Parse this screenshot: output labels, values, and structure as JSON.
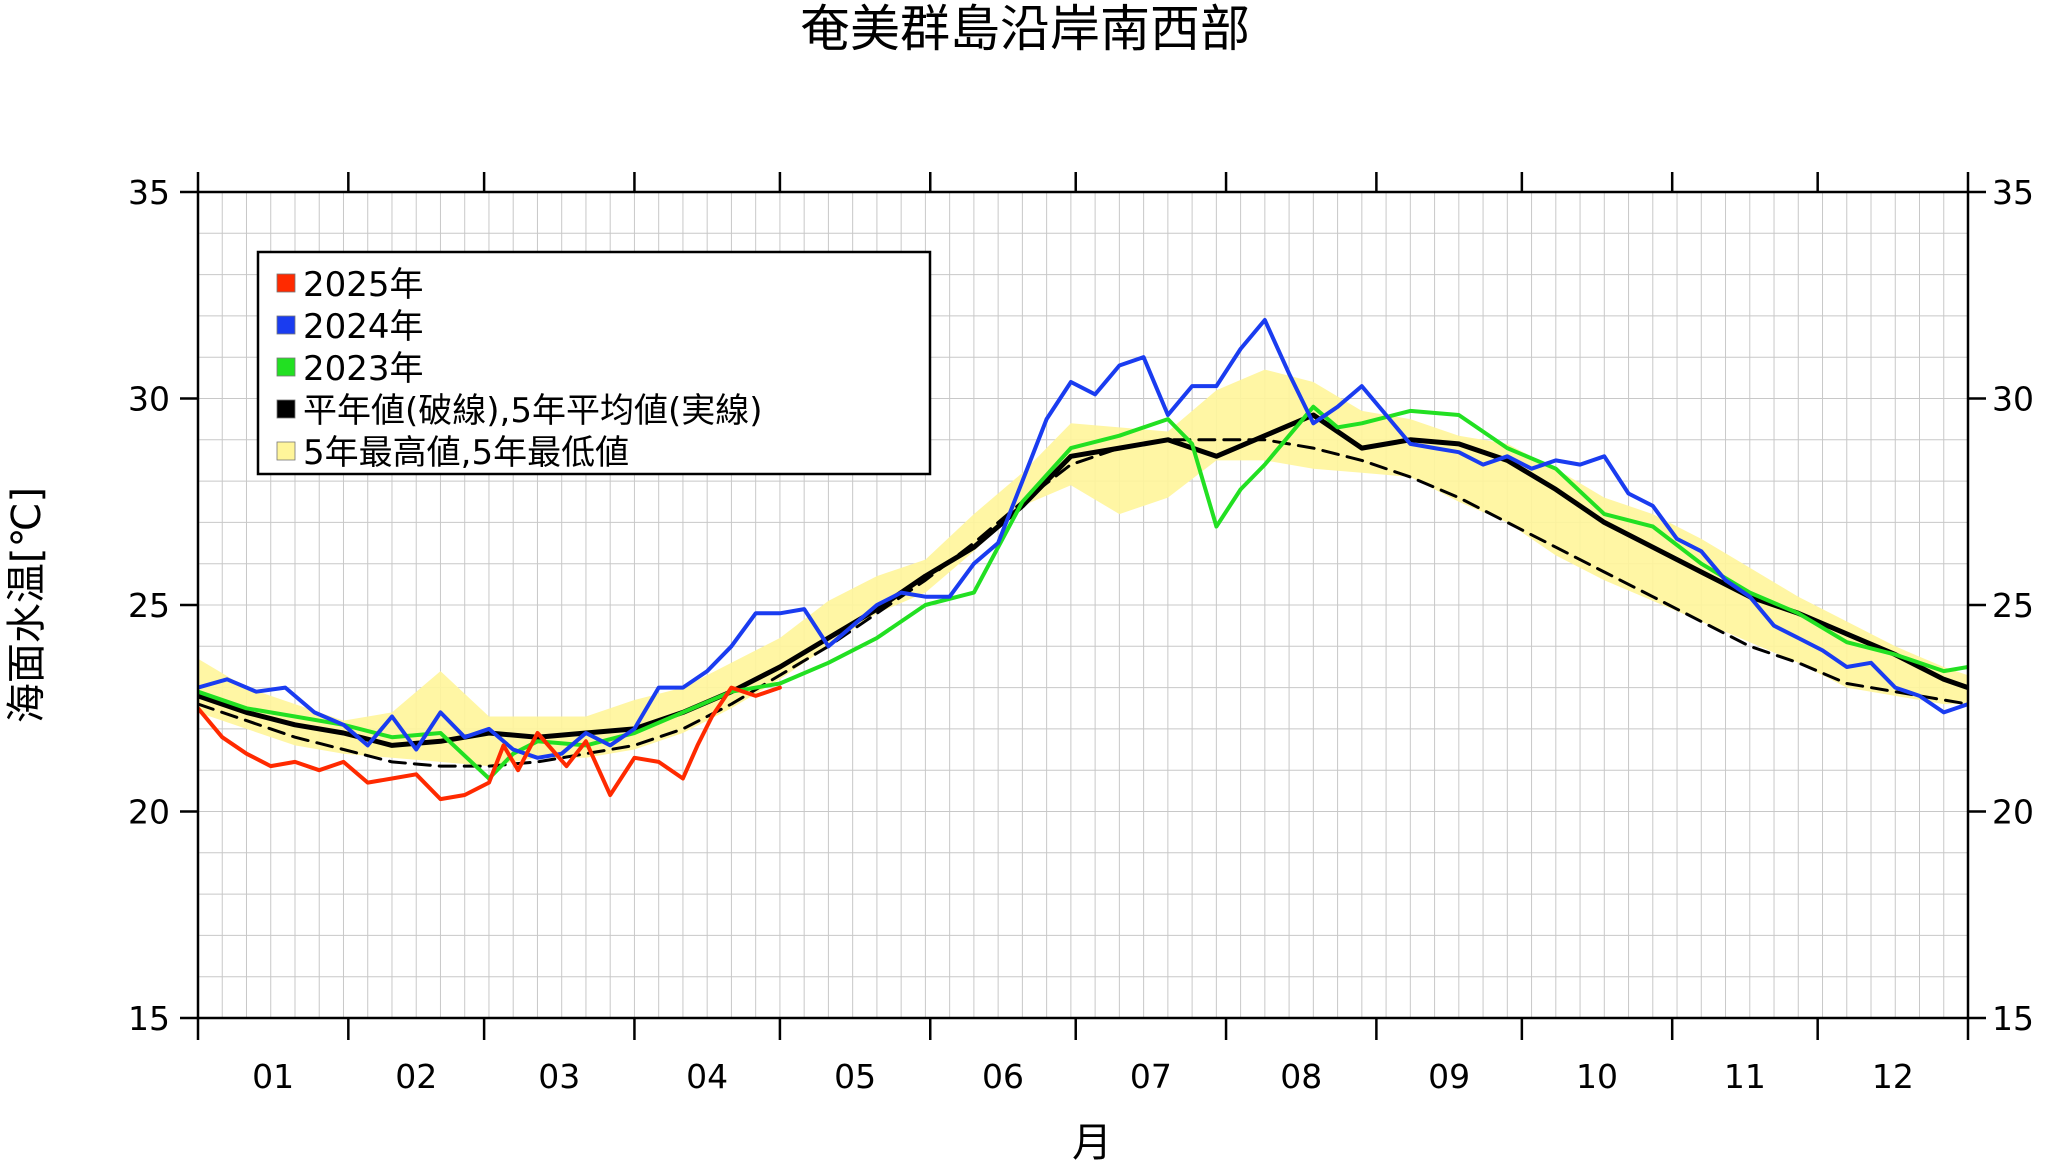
{
  "chart_data": {
    "type": "line",
    "title": "奄美群島沿岸南西部",
    "xlabel": "月",
    "ylabel": "海面水温[℃]",
    "x_unit": "day_of_year",
    "xlim": [
      0,
      365
    ],
    "ylim": [
      15,
      35
    ],
    "y_ticks": [
      15,
      20,
      25,
      30,
      35
    ],
    "month_labels": [
      "01",
      "02",
      "03",
      "04",
      "05",
      "06",
      "07",
      "08",
      "09",
      "10",
      "11",
      "12"
    ],
    "month_starts": [
      0,
      31,
      59,
      90,
      120,
      151,
      181,
      212,
      243,
      273,
      304,
      334,
      365
    ],
    "grid": true,
    "legend_position": "top-left",
    "legend": [
      {
        "label": "2025年",
        "color": "#ff2a00",
        "swatch": "#ff2a00"
      },
      {
        "label": "2024年",
        "color": "#1a3cf0",
        "swatch": "#1a3cf0"
      },
      {
        "label": "2023年",
        "color": "#22e022",
        "swatch": "#22e022"
      },
      {
        "label": "平年値(破線),5年平均値(実線)",
        "color": "#000000",
        "swatch": "#000000"
      },
      {
        "label": "5年最高値,5年最低値",
        "color": "#fff59a",
        "swatch": "#fff59a"
      }
    ],
    "band": {
      "name": "5年最高値,5年最低値",
      "color": "#fff59a",
      "x": [
        0,
        10,
        20,
        30,
        40,
        50,
        60,
        70,
        80,
        90,
        100,
        110,
        120,
        130,
        140,
        150,
        160,
        170,
        180,
        190,
        200,
        210,
        220,
        230,
        240,
        250,
        260,
        270,
        280,
        290,
        300,
        310,
        320,
        330,
        340,
        350,
        360,
        365
      ],
      "upper": [
        23.7,
        23.0,
        22.6,
        22.2,
        22.4,
        23.4,
        22.3,
        22.3,
        22.3,
        22.7,
        23.0,
        23.6,
        24.2,
        25.1,
        25.7,
        26.1,
        27.2,
        28.2,
        29.4,
        29.3,
        29.2,
        30.2,
        30.7,
        30.4,
        29.7,
        29.5,
        29.1,
        28.9,
        28.3,
        27.6,
        27.2,
        26.6,
        25.9,
        25.2,
        24.6,
        24.0,
        23.5,
        23.3
      ],
      "lower": [
        22.4,
        22.0,
        21.6,
        21.4,
        21.3,
        21.2,
        21.1,
        21.3,
        21.3,
        21.5,
        21.9,
        22.5,
        23.2,
        24.0,
        24.8,
        25.3,
        26.3,
        27.4,
        27.9,
        27.2,
        27.6,
        28.5,
        28.5,
        28.3,
        28.2,
        28.1,
        27.5,
        27.0,
        26.2,
        25.6,
        25.1,
        24.6,
        24.1,
        23.6,
        23.0,
        22.8,
        22.6,
        22.6
      ]
    },
    "series": [
      {
        "name": "平年値",
        "color": "#000000",
        "style": "dashed",
        "x": [
          0,
          10,
          20,
          30,
          40,
          50,
          60,
          70,
          80,
          90,
          100,
          110,
          120,
          130,
          140,
          150,
          160,
          170,
          180,
          190,
          200,
          210,
          220,
          230,
          240,
          250,
          260,
          270,
          280,
          290,
          300,
          310,
          320,
          330,
          340,
          350,
          360,
          365
        ],
        "y": [
          22.6,
          22.2,
          21.8,
          21.5,
          21.2,
          21.1,
          21.1,
          21.2,
          21.4,
          21.6,
          22.0,
          22.6,
          23.3,
          24.0,
          24.8,
          25.6,
          26.5,
          27.5,
          28.4,
          28.8,
          29.0,
          29.0,
          29.0,
          28.8,
          28.5,
          28.1,
          27.6,
          27.0,
          26.4,
          25.8,
          25.2,
          24.6,
          24.0,
          23.6,
          23.1,
          22.9,
          22.7,
          22.6
        ]
      },
      {
        "name": "5年平均値",
        "color": "#000000",
        "style": "solid",
        "x": [
          0,
          10,
          20,
          30,
          40,
          50,
          60,
          70,
          80,
          90,
          100,
          110,
          120,
          130,
          140,
          150,
          160,
          170,
          180,
          190,
          200,
          210,
          220,
          230,
          240,
          250,
          260,
          270,
          280,
          290,
          300,
          310,
          320,
          330,
          340,
          350,
          360,
          365
        ],
        "y": [
          22.8,
          22.4,
          22.1,
          21.9,
          21.6,
          21.7,
          21.9,
          21.8,
          21.9,
          22.0,
          22.4,
          22.9,
          23.5,
          24.2,
          24.9,
          25.7,
          26.4,
          27.4,
          28.6,
          28.8,
          29.0,
          28.6,
          29.1,
          29.6,
          28.8,
          29.0,
          28.9,
          28.5,
          27.8,
          27.0,
          26.4,
          25.8,
          25.2,
          24.8,
          24.3,
          23.8,
          23.2,
          23.0
        ]
      },
      {
        "name": "2023年",
        "color": "#22e022",
        "style": "solid",
        "x": [
          0,
          10,
          20,
          30,
          40,
          50,
          60,
          65,
          70,
          80,
          90,
          100,
          110,
          120,
          130,
          140,
          150,
          160,
          170,
          180,
          190,
          200,
          205,
          210,
          215,
          220,
          230,
          235,
          240,
          250,
          260,
          270,
          280,
          290,
          300,
          310,
          320,
          330,
          340,
          350,
          360,
          365
        ],
        "y": [
          22.9,
          22.5,
          22.3,
          22.1,
          21.8,
          21.9,
          20.8,
          21.4,
          21.7,
          21.6,
          21.9,
          22.4,
          22.9,
          23.1,
          23.6,
          24.2,
          25.0,
          25.3,
          27.5,
          28.8,
          29.1,
          29.5,
          28.9,
          26.9,
          27.8,
          28.4,
          29.8,
          29.3,
          29.4,
          29.7,
          29.6,
          28.8,
          28.3,
          27.2,
          26.9,
          26.0,
          25.3,
          24.8,
          24.1,
          23.8,
          23.4,
          23.5
        ]
      },
      {
        "name": "2024年",
        "color": "#1a3cf0",
        "style": "solid",
        "x": [
          0,
          6,
          12,
          18,
          24,
          30,
          35,
          40,
          45,
          50,
          55,
          60,
          65,
          70,
          75,
          80,
          85,
          90,
          95,
          100,
          105,
          110,
          115,
          120,
          125,
          130,
          135,
          140,
          145,
          150,
          155,
          160,
          165,
          170,
          175,
          180,
          185,
          190,
          195,
          200,
          205,
          210,
          215,
          220,
          225,
          230,
          235,
          240,
          245,
          250,
          255,
          260,
          265,
          270,
          275,
          280,
          285,
          290,
          295,
          300,
          305,
          310,
          315,
          320,
          325,
          330,
          335,
          340,
          345,
          350,
          355,
          360,
          365
        ],
        "y": [
          23.0,
          23.2,
          22.9,
          23.0,
          22.4,
          22.1,
          21.6,
          22.3,
          21.5,
          22.4,
          21.8,
          22.0,
          21.5,
          21.3,
          21.4,
          21.9,
          21.6,
          22.0,
          23.0,
          23.0,
          23.4,
          24.0,
          24.8,
          24.8,
          24.9,
          24.0,
          24.5,
          25.0,
          25.3,
          25.2,
          25.2,
          26.0,
          26.5,
          28.0,
          29.5,
          30.4,
          30.1,
          30.8,
          31.0,
          29.6,
          30.3,
          30.3,
          31.2,
          31.9,
          30.6,
          29.4,
          29.8,
          30.3,
          29.6,
          28.9,
          28.8,
          28.7,
          28.4,
          28.6,
          28.3,
          28.5,
          28.4,
          28.6,
          27.7,
          27.4,
          26.6,
          26.3,
          25.6,
          25.2,
          24.5,
          24.2,
          23.9,
          23.5,
          23.6,
          23.0,
          22.8,
          22.4,
          22.6
        ]
      },
      {
        "name": "2025年",
        "color": "#ff2a00",
        "style": "solid",
        "x": [
          0,
          5,
          10,
          15,
          20,
          25,
          30,
          35,
          40,
          45,
          50,
          55,
          60,
          63,
          66,
          70,
          73,
          76,
          80,
          85,
          90,
          95,
          100,
          103,
          106,
          110,
          115,
          120
        ],
        "y": [
          22.5,
          21.8,
          21.4,
          21.1,
          21.2,
          21.0,
          21.2,
          20.7,
          20.8,
          20.9,
          20.3,
          20.4,
          20.7,
          21.6,
          21.0,
          21.9,
          21.5,
          21.1,
          21.7,
          20.4,
          21.3,
          21.2,
          20.8,
          21.6,
          22.3,
          23.0,
          22.8,
          23.0
        ]
      }
    ]
  }
}
